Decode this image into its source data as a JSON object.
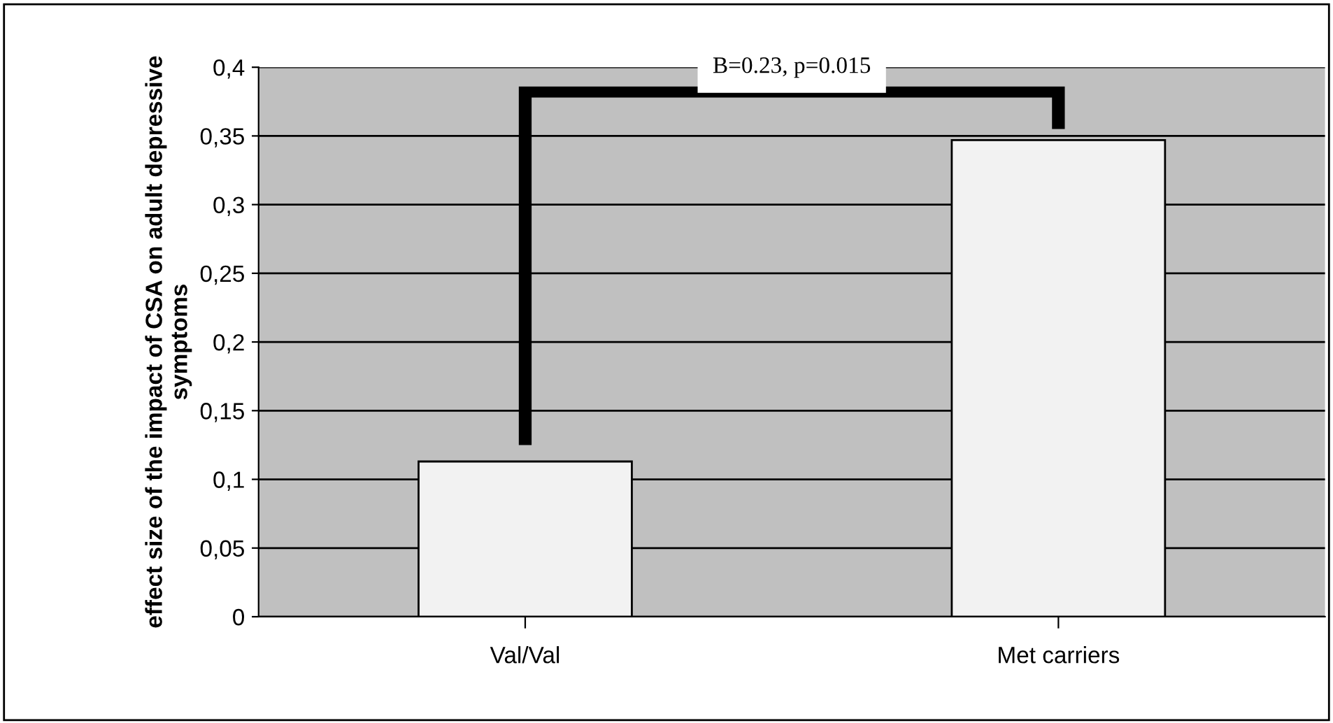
{
  "chart_data": {
    "type": "bar",
    "ylabel": "effect size of the impact of CSA on adult depressive symptoms",
    "categories": [
      "Val/Val",
      "Met carriers"
    ],
    "values": [
      0.113,
      0.347
    ],
    "color": "#f2f2f2",
    "ylim": [
      0,
      0.4
    ],
    "yticks": [
      {
        "value": 0,
        "label": "0"
      },
      {
        "value": 0.05,
        "label": "0,05"
      },
      {
        "value": 0.1,
        "label": "0,1"
      },
      {
        "value": 0.15,
        "label": "0,15"
      },
      {
        "value": 0.2,
        "label": "0,2"
      },
      {
        "value": 0.25,
        "label": "0,25"
      },
      {
        "value": 0.3,
        "label": "0,3"
      },
      {
        "value": 0.35,
        "label": "0,35"
      },
      {
        "value": 0.4,
        "label": "0,4"
      }
    ],
    "grid": "y",
    "annotations": [
      "B=0.23, p=0.015"
    ]
  }
}
